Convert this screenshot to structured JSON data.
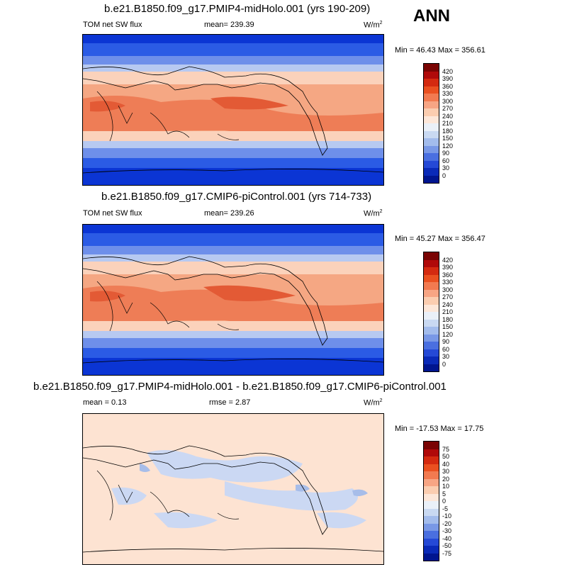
{
  "season": "ANN",
  "panels": [
    {
      "title": "b.e21.B1850.f09_g17.PMIP4-midHolo.001 (yrs 190-209)",
      "left_label": "TOM net SW flux",
      "center_label": "mean= 239.39",
      "units": "W/m",
      "units_exp": "2",
      "minmax": "Min =  46.43 Max = 356.61",
      "levels": [
        "420",
        "390",
        "360",
        "330",
        "300",
        "270",
        "240",
        "210",
        "180",
        "150",
        "120",
        "90",
        "60",
        "30",
        "0"
      ]
    },
    {
      "title": "b.e21.B1850.f09_g17.CMIP6-piControl.001 (yrs 714-733)",
      "left_label": "TOM net SW flux",
      "center_label": "mean= 239.26",
      "units": "W/m",
      "units_exp": "2",
      "minmax": "Min =  45.27 Max = 356.47",
      "levels": [
        "420",
        "390",
        "360",
        "330",
        "300",
        "270",
        "240",
        "210",
        "180",
        "150",
        "120",
        "90",
        "60",
        "30",
        "0"
      ]
    },
    {
      "title": "b.e21.B1850.f09_g17.PMIP4-midHolo.001 - b.e21.B1850.f09_g17.CMIP6-piControl.001",
      "left_label": "mean =   0.13",
      "center_label": "rmse =   2.87",
      "units": "W/m",
      "units_exp": "2",
      "minmax": "Min = -17.53 Max =  17.75",
      "levels": [
        "75",
        "50",
        "40",
        "30",
        "20",
        "10",
        "5",
        "0",
        "-5",
        "-10",
        "-20",
        "-30",
        "-40",
        "-50",
        "-75"
      ]
    }
  ],
  "colorbar_colors": [
    "#7a0403",
    "#b00a0a",
    "#d42a10",
    "#ea5020",
    "#f27a50",
    "#f7a584",
    "#fbcdb0",
    "#fde7d9",
    "#eaf0f8",
    "#c9d9f2",
    "#a3bcec",
    "#7998e6",
    "#4a6fe0",
    "#2549d6",
    "#0a2ab8",
    "#00158f"
  ],
  "map_colors": {
    "deep_blue": "#0b35d4",
    "blue": "#2b5be5",
    "mid_blue": "#6e8fea",
    "light_blue": "#b7c9f1",
    "pale": "#f3eae3",
    "peach": "#fbd2bb",
    "salmon": "#f5a783",
    "orange": "#ee7d56",
    "red_orange": "#e35a35",
    "diff_bg": "#fde3d2",
    "diff_blue": "#cbd8f3",
    "diff_blue2": "#a7bde9"
  }
}
